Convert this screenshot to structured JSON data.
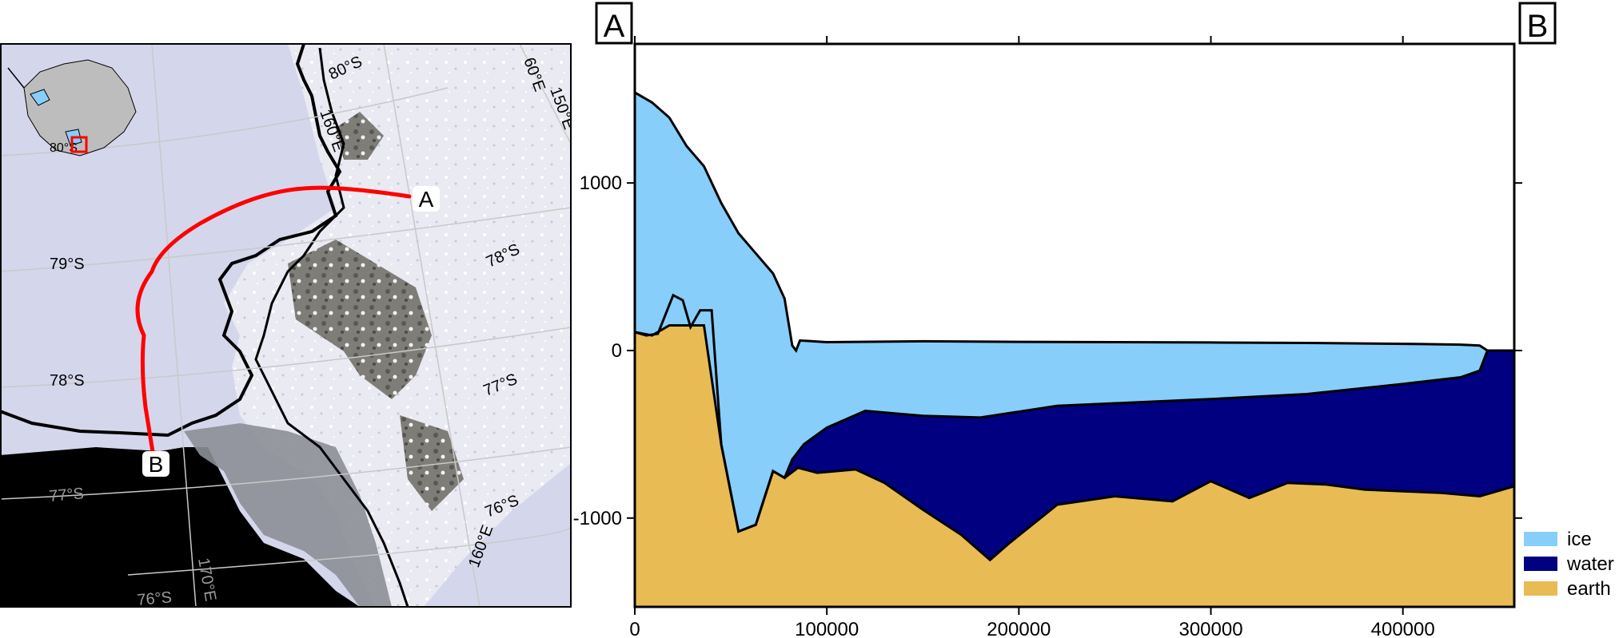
{
  "map": {
    "route_labels": [
      "A",
      "B"
    ],
    "graticule_labels": {
      "lat": [
        "79°S",
        "78°S",
        "77°S",
        "76°S",
        "80°S",
        "78°S",
        "77°S",
        "76°S",
        "77°S"
      ],
      "lon": [
        "160°E",
        "170°E",
        "150°E",
        "160°E",
        "60°E"
      ],
      "inset": "80°S"
    },
    "colors": {
      "route": "#ff0000",
      "ice_shelf": "#d4d6ec",
      "ocean": "#000000",
      "inset_land": "#bdbdbd",
      "inset_box": "#ff0000"
    }
  },
  "chart_data": {
    "type": "area",
    "title": "",
    "xlabel": "",
    "ylabel": "",
    "xlim": [
      0,
      458000
    ],
    "ylim": [
      -1530,
      1830
    ],
    "x_ticks": [
      0,
      100000,
      200000,
      300000,
      400000
    ],
    "y_ticks": [
      -1000,
      0,
      1000
    ],
    "endpoint_labels": [
      "A",
      "B"
    ],
    "legend_position": "bottom-right outside",
    "series": [
      {
        "name": "ice",
        "color": "#87cefa"
      },
      {
        "name": "water",
        "color": "#000080"
      },
      {
        "name": "earth",
        "color": "#e8bb55"
      }
    ],
    "profiles": {
      "surface": [
        [
          0,
          1540
        ],
        [
          9000,
          1480
        ],
        [
          18000,
          1390
        ],
        [
          27000,
          1220
        ],
        [
          36000,
          1100
        ],
        [
          45000,
          880
        ],
        [
          54000,
          700
        ],
        [
          63000,
          580
        ],
        [
          72000,
          460
        ],
        [
          78000,
          310
        ],
        [
          82000,
          30
        ],
        [
          84000,
          0
        ],
        [
          86000,
          60
        ],
        [
          100000,
          50
        ],
        [
          150000,
          55
        ],
        [
          200000,
          52
        ],
        [
          250000,
          50
        ],
        [
          300000,
          48
        ],
        [
          350000,
          45
        ],
        [
          400000,
          40
        ],
        [
          430000,
          35
        ],
        [
          440000,
          30
        ],
        [
          444000,
          0
        ],
        [
          458000,
          0
        ]
      ],
      "ice_base": [
        [
          0,
          110
        ],
        [
          9000,
          90
        ],
        [
          18000,
          150
        ],
        [
          27000,
          150
        ],
        [
          36000,
          150
        ],
        [
          45000,
          -560
        ],
        [
          54000,
          -1080
        ],
        [
          63000,
          -1040
        ],
        [
          72000,
          -720
        ],
        [
          78000,
          -760
        ],
        [
          82000,
          -650
        ],
        [
          88000,
          -560
        ],
        [
          100000,
          -460
        ],
        [
          120000,
          -360
        ],
        [
          150000,
          -390
        ],
        [
          180000,
          -400
        ],
        [
          220000,
          -330
        ],
        [
          260000,
          -310
        ],
        [
          300000,
          -290
        ],
        [
          350000,
          -260
        ],
        [
          400000,
          -200
        ],
        [
          430000,
          -160
        ],
        [
          440000,
          -120
        ],
        [
          444000,
          0
        ],
        [
          458000,
          0
        ]
      ],
      "bed": [
        [
          0,
          110
        ],
        [
          6000,
          90
        ],
        [
          12000,
          100
        ],
        [
          20000,
          330
        ],
        [
          25000,
          300
        ],
        [
          29000,
          140
        ],
        [
          34000,
          240
        ],
        [
          40000,
          240
        ],
        [
          45000,
          -560
        ],
        [
          54000,
          -1080
        ],
        [
          63000,
          -1040
        ],
        [
          72000,
          -720
        ],
        [
          78000,
          -760
        ],
        [
          85000,
          -700
        ],
        [
          95000,
          -730
        ],
        [
          115000,
          -710
        ],
        [
          130000,
          -790
        ],
        [
          150000,
          -950
        ],
        [
          170000,
          -1100
        ],
        [
          185000,
          -1250
        ],
        [
          195000,
          -1150
        ],
        [
          220000,
          -920
        ],
        [
          250000,
          -870
        ],
        [
          280000,
          -900
        ],
        [
          300000,
          -780
        ],
        [
          320000,
          -880
        ],
        [
          340000,
          -790
        ],
        [
          360000,
          -800
        ],
        [
          380000,
          -830
        ],
        [
          400000,
          -840
        ],
        [
          420000,
          -850
        ],
        [
          440000,
          -870
        ],
        [
          458000,
          -810
        ]
      ],
      "water_bottom": [
        [
          444000,
          0
        ],
        [
          458000,
          0
        ]
      ]
    }
  }
}
